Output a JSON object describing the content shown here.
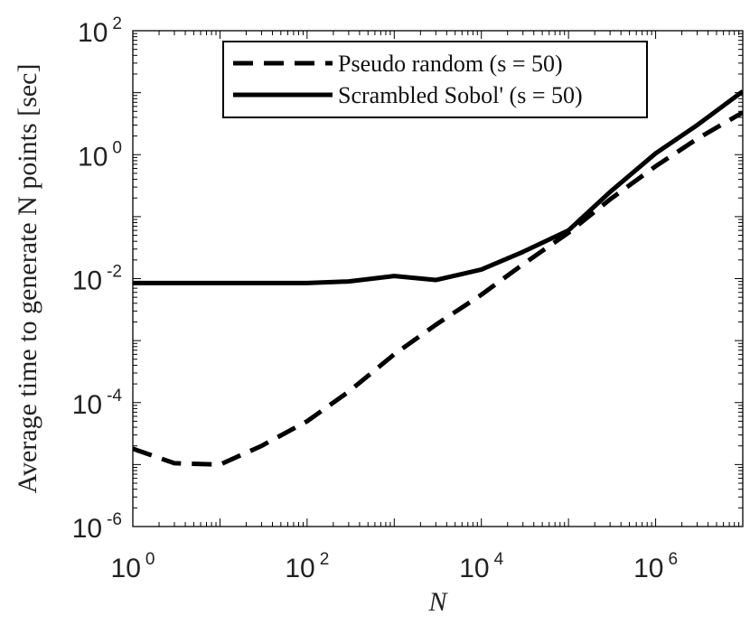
{
  "chart_data": {
    "type": "line",
    "xlabel": "N",
    "ylabel": "Average time to generate N points [sec]",
    "xscale": "log",
    "yscale": "log",
    "xlim": [
      1,
      10000000
    ],
    "ylim": [
      1e-06,
      100
    ],
    "grid": false,
    "legend_position": "top-right",
    "x_ticks": [
      {
        "value": 1,
        "base": "10",
        "exp": "0"
      },
      {
        "value": 100,
        "base": "10",
        "exp": "2"
      },
      {
        "value": 10000,
        "base": "10",
        "exp": "4"
      },
      {
        "value": 1000000,
        "base": "10",
        "exp": "6"
      }
    ],
    "y_ticks": [
      {
        "value": 1e-06,
        "base": "10",
        "exp": "-6"
      },
      {
        "value": 0.0001,
        "base": "10",
        "exp": "-4"
      },
      {
        "value": 0.01,
        "base": "10",
        "exp": "-2"
      },
      {
        "value": 1,
        "base": "10",
        "exp": "0"
      },
      {
        "value": 100,
        "base": "10",
        "exp": "2"
      }
    ],
    "series": [
      {
        "name": "Pseudo random (s = 50)",
        "style": "dashed",
        "color": "#000000",
        "x": [
          1,
          3,
          10,
          30,
          100,
          300,
          1000,
          3000,
          10000,
          30000,
          100000,
          300000,
          1000000,
          3000000,
          10000000
        ],
        "y": [
          1.8e-05,
          1.05e-05,
          1e-05,
          2e-05,
          5e-05,
          0.00015,
          0.0006,
          0.0018,
          0.0055,
          0.017,
          0.055,
          0.19,
          0.65,
          1.8,
          4.8
        ]
      },
      {
        "name": "Scrambled Sobol' (s = 50)",
        "style": "solid",
        "color": "#000000",
        "x": [
          1,
          10,
          100,
          300,
          1000,
          3000,
          10000,
          30000,
          100000,
          300000,
          1000000,
          3000000,
          10000000
        ],
        "y": [
          0.0085,
          0.0085,
          0.0085,
          0.009,
          0.011,
          0.0095,
          0.014,
          0.027,
          0.06,
          0.25,
          1.05,
          3.0,
          10.5
        ]
      }
    ]
  }
}
